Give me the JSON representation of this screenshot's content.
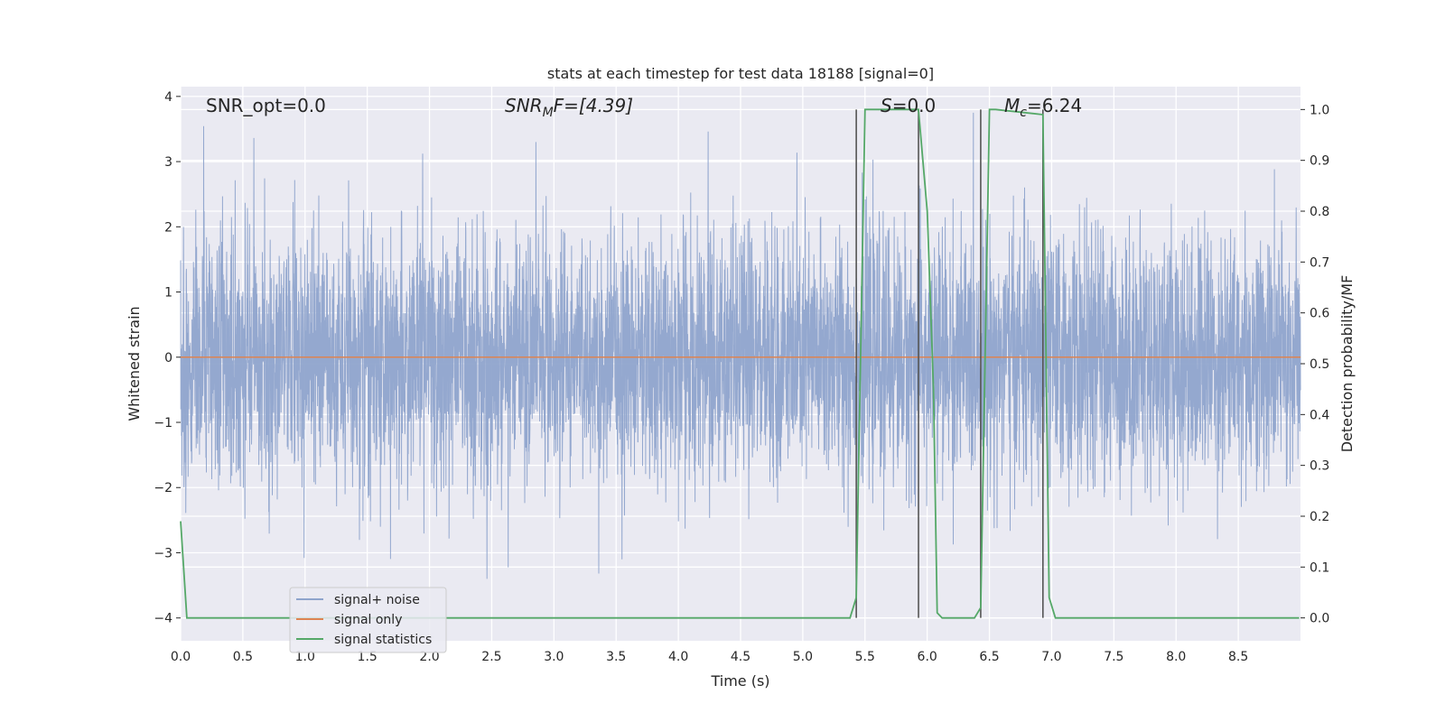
{
  "chart_data": {
    "type": "line",
    "title": "stats at each timestep for test data 18188 [signal=0]",
    "xlabel": "Time (s)",
    "ylabel_left": "Whitened strain",
    "ylabel_right": "Detection probability/MF",
    "xlim": [
      0.0,
      9.0
    ],
    "ylim_left": [
      -4.35,
      4.15
    ],
    "ylim_right": [
      -0.045,
      1.045
    ],
    "x_ticks": [
      "0.0",
      "0.5",
      "1.0",
      "1.5",
      "2.0",
      "2.5",
      "3.0",
      "3.5",
      "4.0",
      "4.5",
      "5.0",
      "5.5",
      "6.0",
      "6.5",
      "7.0",
      "7.5",
      "8.0",
      "8.5"
    ],
    "y_ticks_left": [
      "−4",
      "−3",
      "−2",
      "−1",
      "0",
      "1",
      "2",
      "3",
      "4"
    ],
    "y_ticks_right": [
      "0.0",
      "0.1",
      "0.2",
      "0.3",
      "0.4",
      "0.5",
      "0.6",
      "0.7",
      "0.8",
      "0.9",
      "1.0"
    ],
    "grid": true,
    "legend_position": "lower-left",
    "annotations": {
      "snr_opt": "SNR_opt=0.0",
      "snr_mf_label": "SNR",
      "snr_mf_sub": "M",
      "snr_mf_value": "F=[4.39]",
      "s_label": "S",
      "s_value": "=0.0",
      "mc_label": "M",
      "mc_sub": "c",
      "mc_value": "=6.24"
    },
    "vertical_lines": [
      5.43,
      5.93,
      6.43,
      6.93
    ],
    "series": [
      {
        "name": "signal+ noise",
        "color": "#8fa4cc",
        "axis": "left",
        "x_range": [
          0.0,
          9.0
        ],
        "amplitude_range": [
          -3.4,
          3.75
        ]
      },
      {
        "name": "signal only",
        "color": "#dd8452",
        "axis": "left",
        "x": [
          0.0,
          9.0
        ],
        "y": [
          0.0,
          0.0
        ]
      },
      {
        "name": "signal statistics",
        "color": "#55a868",
        "axis": "right",
        "x": [
          0.0,
          0.05,
          0.1,
          0.15,
          0.2,
          0.25,
          0.3,
          0.5,
          1.0,
          2.0,
          3.0,
          4.0,
          5.0,
          5.3,
          5.38,
          5.43,
          5.5,
          5.55,
          5.93,
          6.0,
          6.05,
          6.08,
          6.12,
          6.2,
          6.3,
          6.38,
          6.43,
          6.5,
          6.55,
          6.93,
          6.98,
          7.03,
          7.08,
          7.2,
          8.0,
          8.99
        ],
        "y": [
          0.19,
          0.0,
          0.0,
          0.0,
          0.0,
          0.0,
          0.0,
          0.0,
          0.0,
          0.0,
          0.0,
          0.0,
          0.0,
          0.0,
          0.0,
          0.04,
          1.0,
          1.0,
          1.0,
          0.8,
          0.45,
          0.01,
          0.0,
          0.0,
          0.0,
          0.0,
          0.02,
          1.0,
          1.0,
          0.99,
          0.04,
          0.0,
          0.0,
          0.0,
          0.0,
          0.0
        ]
      }
    ]
  }
}
